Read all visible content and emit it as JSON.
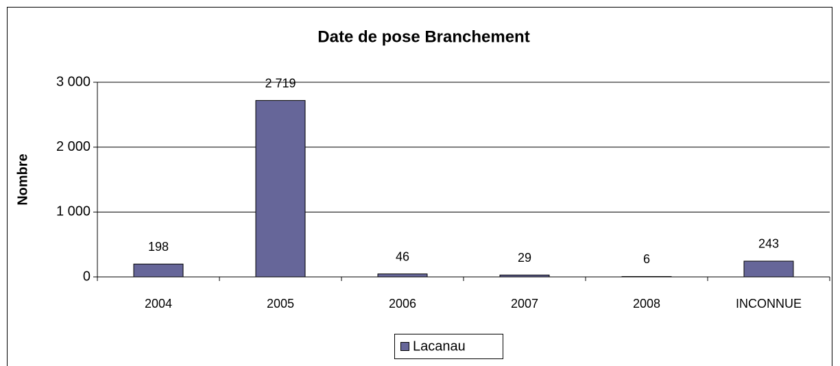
{
  "chart_data": {
    "type": "bar",
    "title": "Date de pose Branchement",
    "y_label": "Nombre",
    "categories": [
      "2004",
      "2005",
      "2006",
      "2007",
      "2008",
      "INCONNUE"
    ],
    "series": [
      {
        "name": "Lacanau",
        "color": "#666699",
        "values": [
          198,
          2719,
          46,
          29,
          6,
          243
        ],
        "value_labels": [
          "198",
          "2 719",
          "46",
          "29",
          "6",
          "243"
        ]
      }
    ],
    "ylim": [
      0,
      3000
    ],
    "yticks": [
      0,
      {
        "value": 1000,
        "label": "1 000"
      },
      {
        "value": 2000,
        "label": "2 000"
      },
      {
        "value": 3000,
        "label": "3 000"
      }
    ],
    "grid": true,
    "legend": "bottom"
  }
}
